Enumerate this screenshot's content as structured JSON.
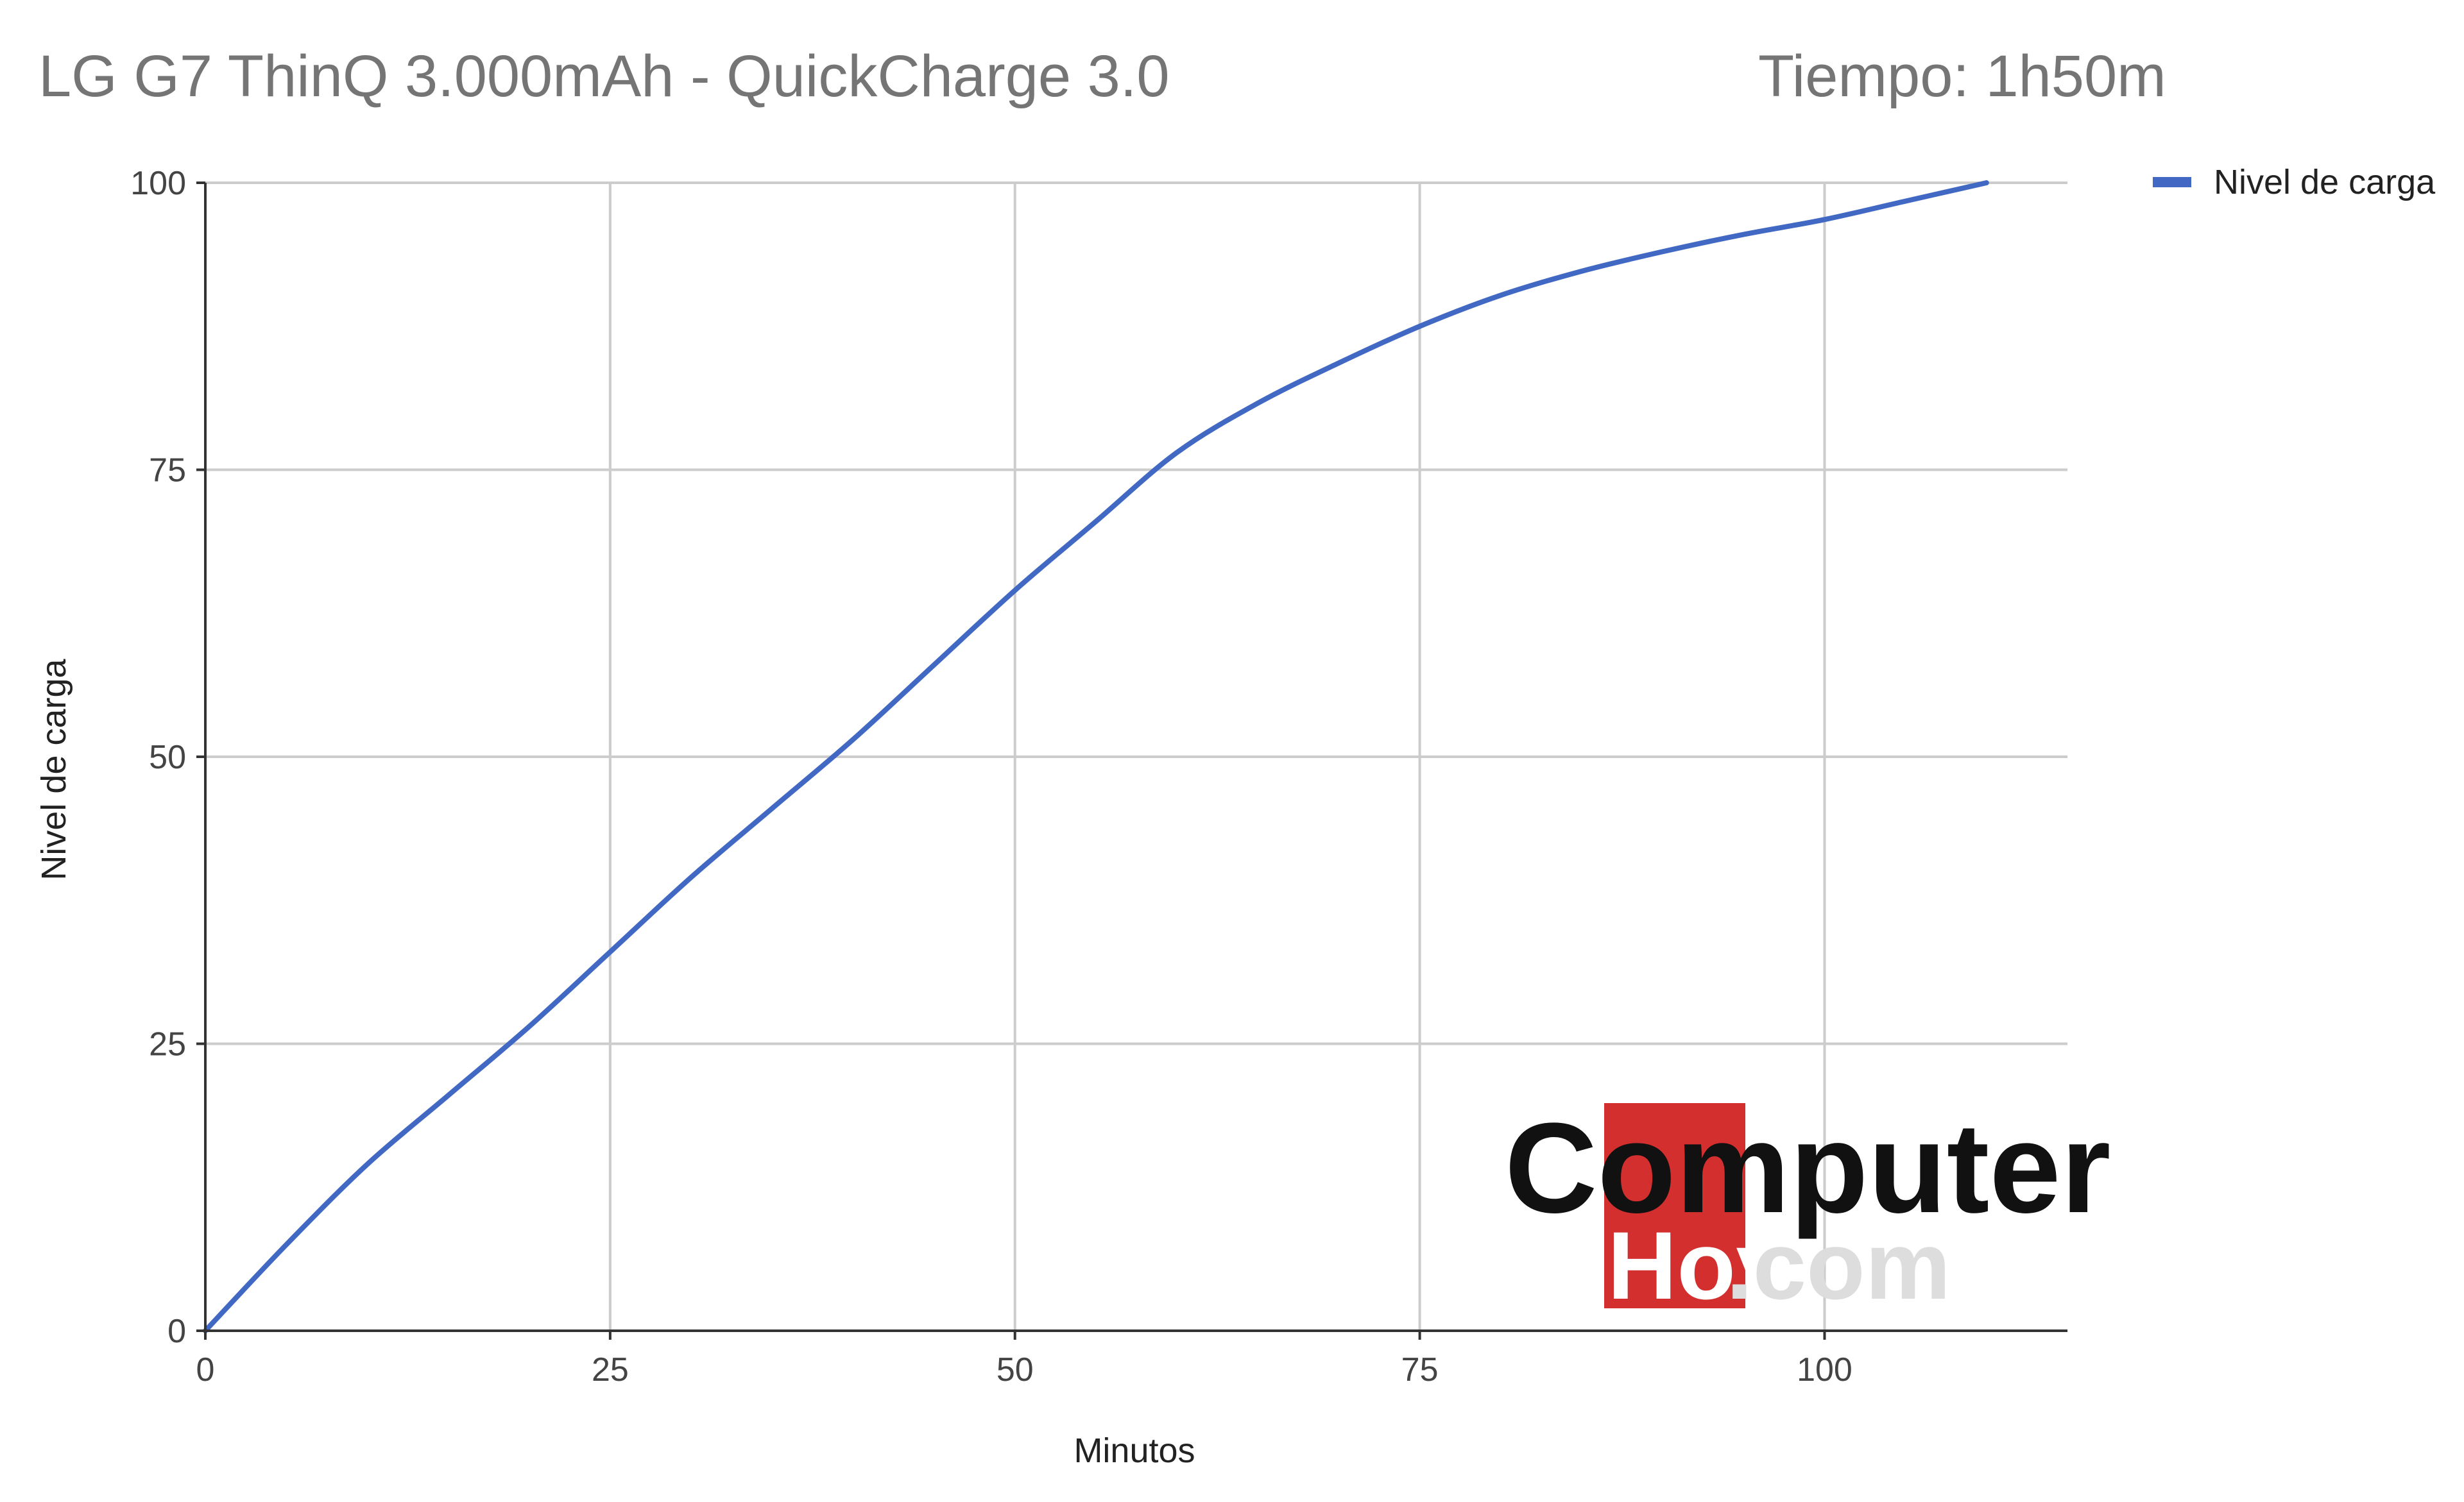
{
  "chart_data": {
    "type": "line",
    "title": "LG G7 ThinQ  3.000mAh - QuickCharge 3.0",
    "subtitle": "Tiempo: 1h50m",
    "xlabel": "Minutos",
    "ylabel": "Nivel de carga",
    "xlim": [
      0,
      115
    ],
    "ylim": [
      0,
      100
    ],
    "x_ticks": [
      0,
      25,
      50,
      75,
      100
    ],
    "y_ticks": [
      0,
      25,
      50,
      75,
      100
    ],
    "grid": true,
    "legend_position": "right",
    "series": [
      {
        "name": "Nivel de carga",
        "color": "#4169c4",
        "x": [
          0,
          5,
          10,
          15,
          20,
          25,
          30,
          35,
          40,
          45,
          50,
          55,
          60,
          65,
          70,
          75,
          80,
          85,
          90,
          95,
          100,
          105,
          110
        ],
        "y": [
          0,
          7.5,
          14.5,
          20.5,
          26.5,
          33,
          39.5,
          45.5,
          51.5,
          58,
          64.5,
          70.5,
          76.5,
          80.8,
          84.3,
          87.5,
          90.2,
          92.3,
          94,
          95.5,
          96.8,
          98.4,
          100
        ]
      }
    ]
  },
  "watermark": {
    "brand": "Computer",
    "sub": "Hoy",
    "domain": ".com",
    "accent_color": "#d32f2f"
  }
}
